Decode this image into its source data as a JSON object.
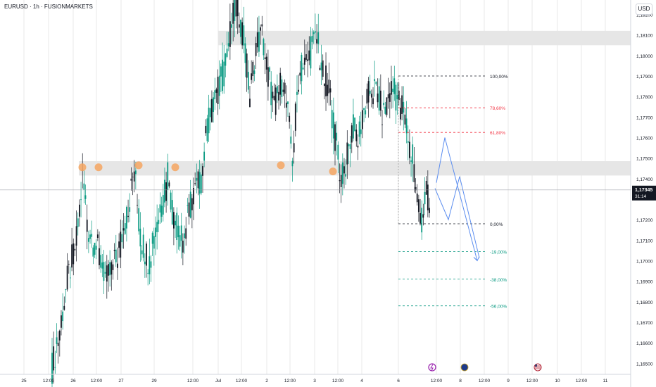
{
  "header": {
    "title": "EURUSD · 1h · FUSIONMARKETS",
    "currency_button": "USD"
  },
  "price_axis": {
    "ticks": [
      "1,18100",
      "1,18000",
      "1,17900",
      "1,17800",
      "1,17700",
      "1,17600",
      "1,17500",
      "1,17400",
      "1,17200",
      "1,17100",
      "1,17000",
      "1,16900",
      "1,16800",
      "1,16700",
      "1,16600",
      "1,16500"
    ],
    "top_clipped": "1,18200",
    "current_price": "1,17345",
    "countdown": "31:14"
  },
  "time_axis": {
    "labels": [
      "25",
      "12:00",
      "26",
      "12:00",
      "27",
      "29",
      "12:00",
      "Jul",
      "12:00",
      "2",
      "12:00",
      "3",
      "12:00",
      "4",
      "6",
      "12:00",
      "8",
      "12:00",
      "9",
      "12:00",
      "10",
      "12:00",
      "11"
    ]
  },
  "fib_levels": [
    {
      "label": "100,00%",
      "price": 1.179,
      "color": "#131722"
    },
    {
      "label": "78,60%",
      "price": 1.17745,
      "color": "#f23645"
    },
    {
      "label": "61,80%",
      "price": 1.17625,
      "color": "#f23645"
    },
    {
      "label": "0,00%",
      "price": 1.1718,
      "color": "#131722"
    },
    {
      "label": "-19,00%",
      "price": 1.17045,
      "color": "#089981"
    },
    {
      "label": "-38,00%",
      "price": 1.1691,
      "color": "#089981"
    },
    {
      "label": "-56,00%",
      "price": 1.1678,
      "color": "#089981"
    }
  ],
  "zones": [
    {
      "name": "supply-zone",
      "top": 1.1812,
      "bottom": 1.1805
    },
    {
      "name": "support-resistance-zone",
      "top": 1.17485,
      "bottom": 1.17415
    }
  ],
  "markers": [
    {
      "name": "touch-marker-1",
      "time": "26",
      "price": 1.17455
    },
    {
      "name": "touch-marker-2",
      "time": "26 12:00",
      "price": 1.17455
    },
    {
      "name": "touch-marker-3",
      "time": "27 12:00",
      "price": 1.17465
    },
    {
      "name": "touch-marker-4",
      "time": "29 12:00",
      "price": 1.17455
    },
    {
      "name": "touch-marker-5",
      "time": "2 12:00",
      "price": 1.17465
    },
    {
      "name": "touch-marker-6",
      "time": "3",
      "price": 1.17435
    }
  ],
  "event_icons": [
    {
      "name": "lightning-event-icon",
      "color": "#9c27b0"
    },
    {
      "name": "eu-flag-event-icon",
      "color": "#1e3a8a"
    },
    {
      "name": "us-flag-event-icon",
      "color": "#b22234"
    }
  ],
  "colors": {
    "up": "#089981",
    "down": "#131722",
    "zone": "#e6e6e6",
    "marker": "#f4a460",
    "projection": "#5b8def",
    "gridline": "#e8e8e8"
  },
  "chart_data": {
    "type": "candlestick",
    "symbol": "EURUSD",
    "interval": "1h",
    "ylim": [
      1.1645,
      1.1827
    ],
    "last_price": 1.17345,
    "key_prices": {
      "swing_high": 1.1826,
      "supply_zone": [
        1.1805,
        1.1812
      ],
      "sr_zone": [
        1.17415,
        1.17485
      ],
      "fib_100": 1.179,
      "fib_0": 1.1718,
      "range_low": 1.1648
    },
    "fibonacci": [
      {
        "level": "100,00%",
        "price": 1.179
      },
      {
        "level": "78,60%",
        "price": 1.17745
      },
      {
        "level": "61,80%",
        "price": 1.17625
      },
      {
        "level": "0,00%",
        "price": 1.1718
      },
      {
        "level": "-19,00%",
        "price": 1.17045
      },
      {
        "level": "-38,00%",
        "price": 1.1691
      },
      {
        "level": "-56,00%",
        "price": 1.1678
      }
    ],
    "projection_path_prices": [
      1.1738,
      1.176,
      1.172,
      1.1741,
      1.17
    ]
  }
}
